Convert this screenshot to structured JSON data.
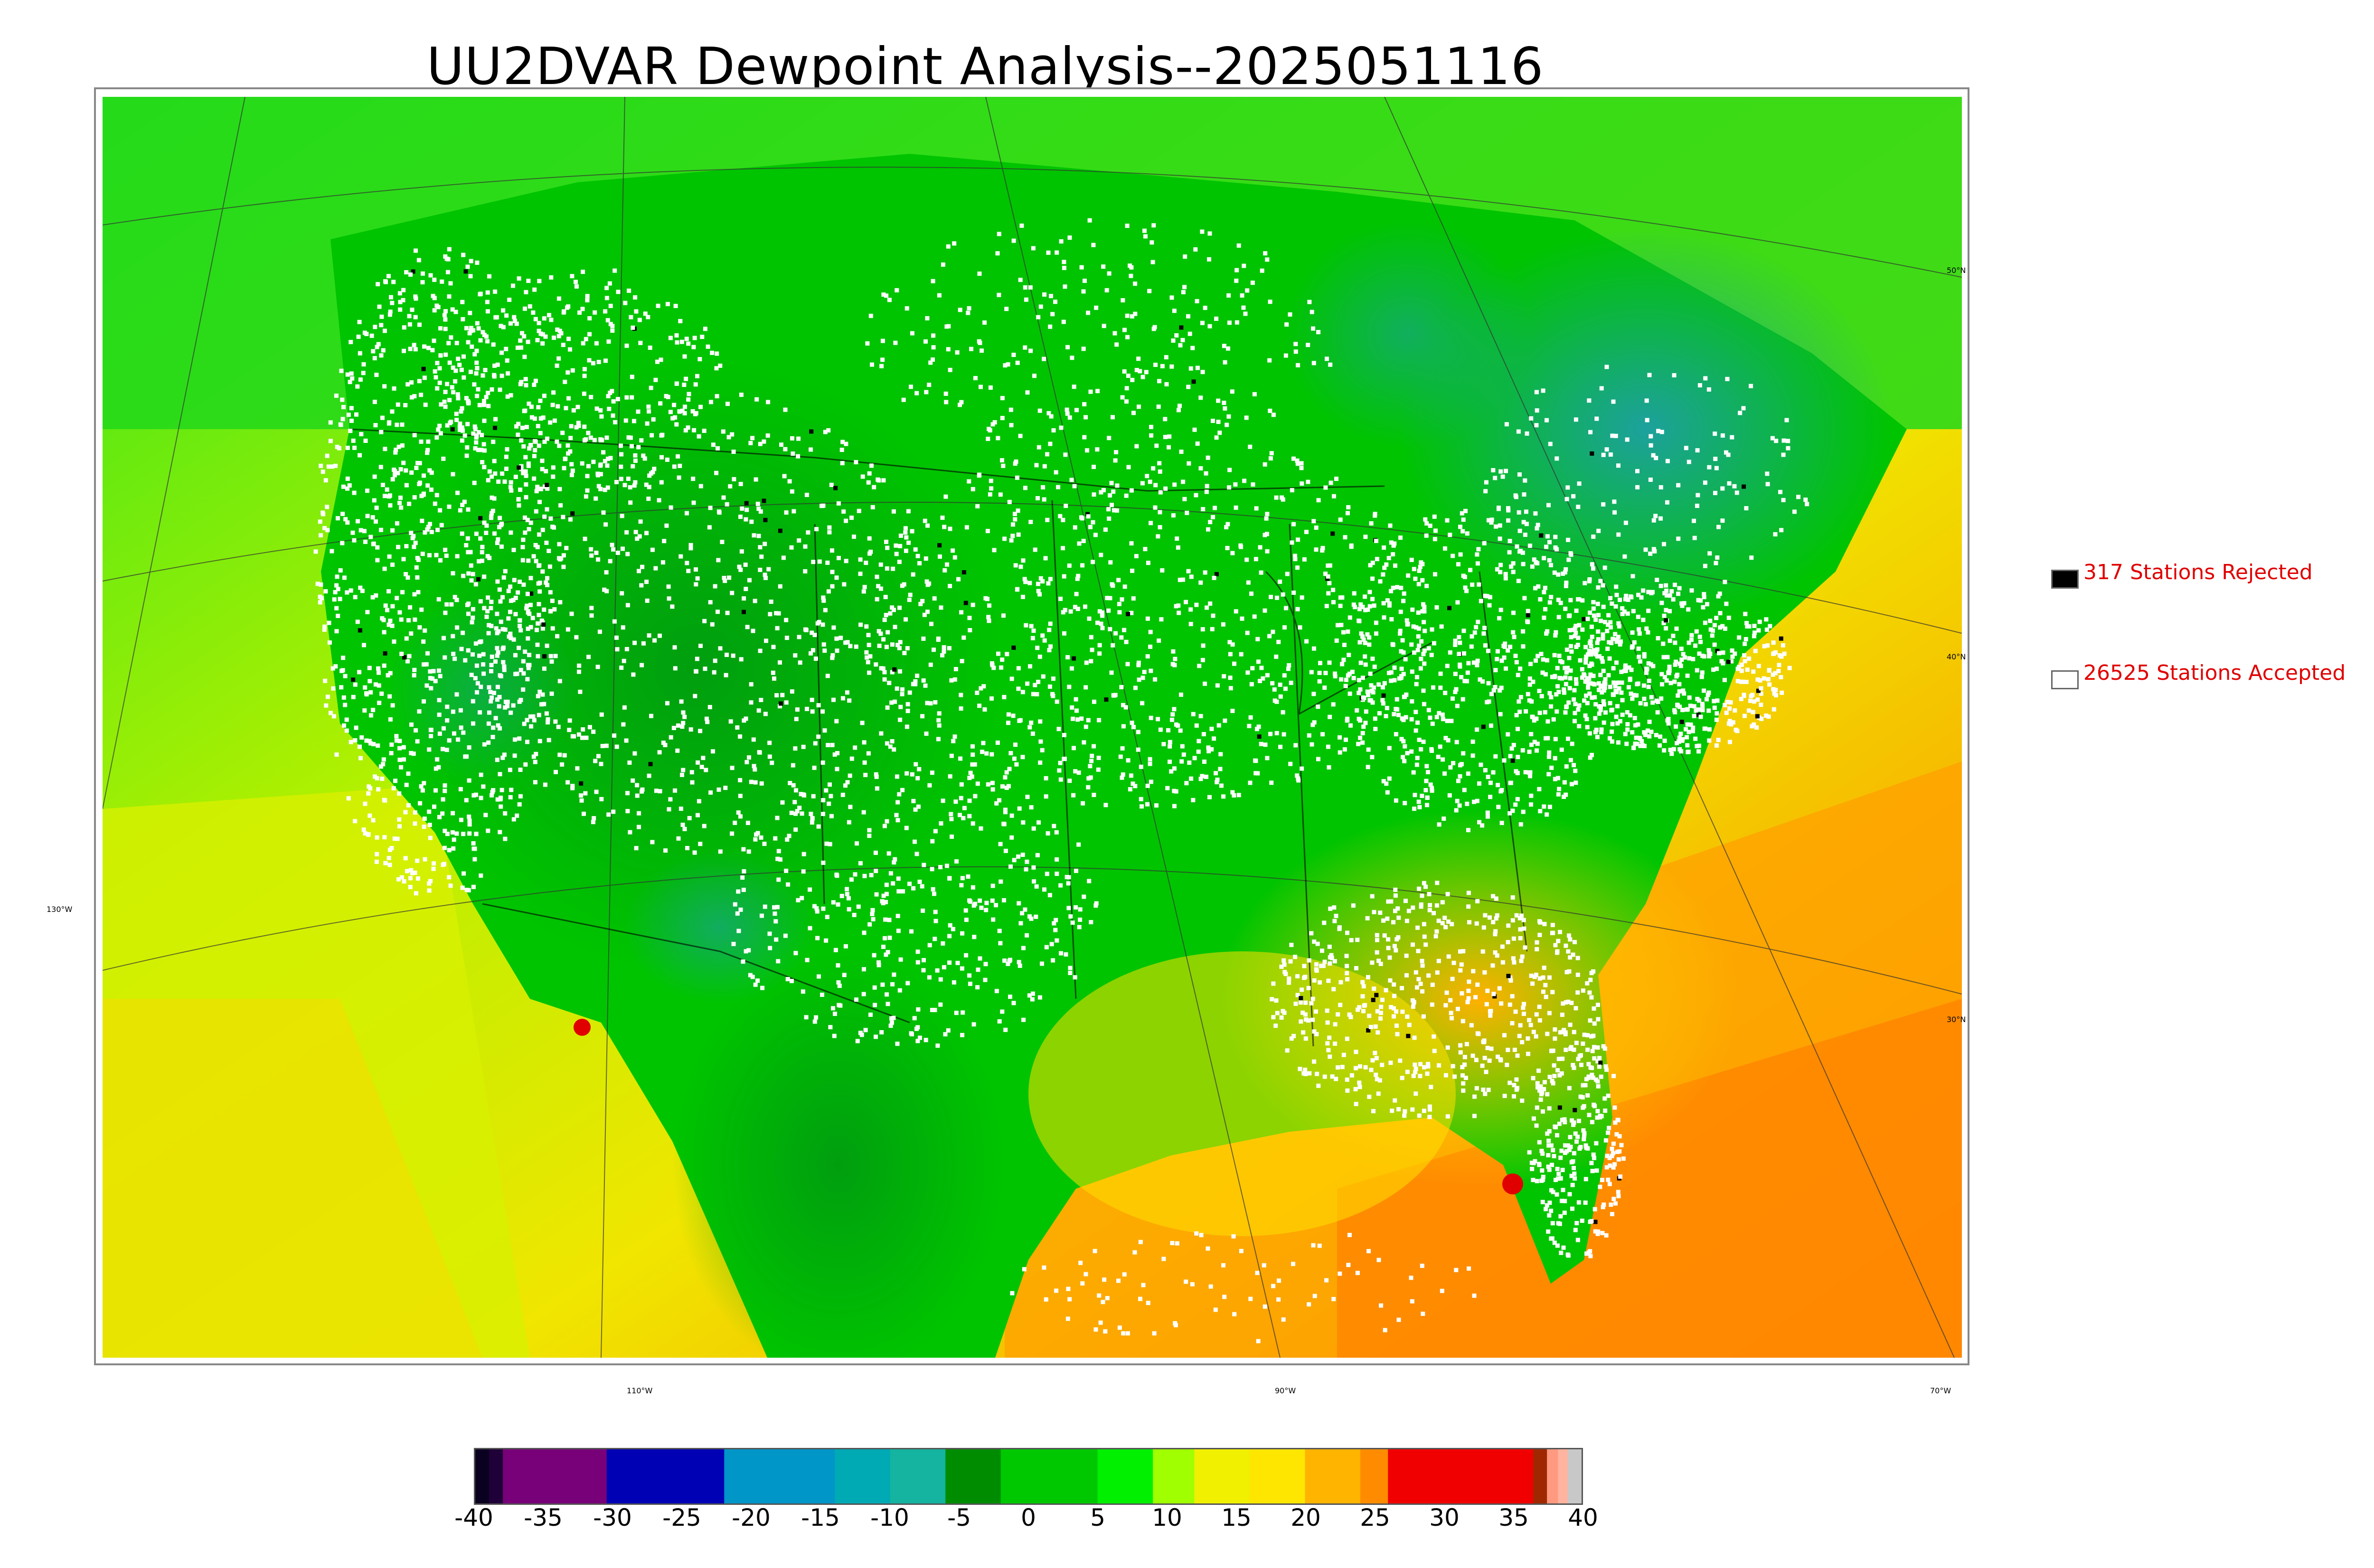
{
  "title": "UU2DVAR Dewpoint Analysis--2025051116",
  "map": {
    "lat_labels": [
      "50°N",
      "40°N",
      "30°N"
    ],
    "lon_labels_left": [
      "130°W"
    ],
    "lon_labels_bottom": [
      "110°W",
      "90°W",
      "70°W"
    ],
    "field": "dewpoint",
    "colors": {
      "ocean_warm": "#ff8c00",
      "ocean_mid": "#ffd700",
      "land_green": "#00b400",
      "land_dark": "#008c00",
      "cool_teal": "#1aa0a0",
      "hot_red": "#e00000",
      "coast_line": "#000000",
      "station_accepted": "#ffffff",
      "station_rejected": "#000000"
    }
  },
  "legend": {
    "rejected": {
      "label": "317 Stations Rejected",
      "color": "#000000"
    },
    "accepted": {
      "label": "26525 Stations Accepted",
      "color": "#ffffff"
    }
  },
  "colorbar": {
    "ticks": [
      "-40",
      "-35",
      "-30",
      "-25",
      "-20",
      "-15",
      "-10",
      "-5",
      "0",
      "5",
      "10",
      "15",
      "20",
      "25",
      "30",
      "35",
      "40"
    ],
    "range": [
      -40,
      40
    ],
    "bands": [
      {
        "from": -40,
        "to": -39,
        "color": "#0a0020"
      },
      {
        "from": -39,
        "to": -38,
        "color": "#200038"
      },
      {
        "from": -38,
        "to": -30.5,
        "color": "#780078"
      },
      {
        "from": -30.5,
        "to": -22,
        "color": "#0000b4"
      },
      {
        "from": -22,
        "to": -14,
        "color": "#0096c8"
      },
      {
        "from": -14,
        "to": -10,
        "color": "#00aab4"
      },
      {
        "from": -10,
        "to": -6,
        "color": "#14b4a0"
      },
      {
        "from": -6,
        "to": -2,
        "color": "#008c00"
      },
      {
        "from": -2,
        "to": 5,
        "color": "#00c800"
      },
      {
        "from": 5,
        "to": 9,
        "color": "#00f000"
      },
      {
        "from": 9,
        "to": 12,
        "color": "#a0ff00"
      },
      {
        "from": 12,
        "to": 16,
        "color": "#f0f000"
      },
      {
        "from": 16,
        "to": 20,
        "color": "#ffe600"
      },
      {
        "from": 20,
        "to": 24,
        "color": "#ffb400"
      },
      {
        "from": 24,
        "to": 26,
        "color": "#ff8c00"
      },
      {
        "from": 26,
        "to": 36.5,
        "color": "#f00000"
      },
      {
        "from": 36.5,
        "to": 37.5,
        "color": "#a02800"
      },
      {
        "from": 37.5,
        "to": 38.3,
        "color": "#ff9a80"
      },
      {
        "from": 38.3,
        "to": 39,
        "color": "#ffb4a0"
      },
      {
        "from": 39,
        "to": 40,
        "color": "#c8c8c8"
      }
    ]
  }
}
